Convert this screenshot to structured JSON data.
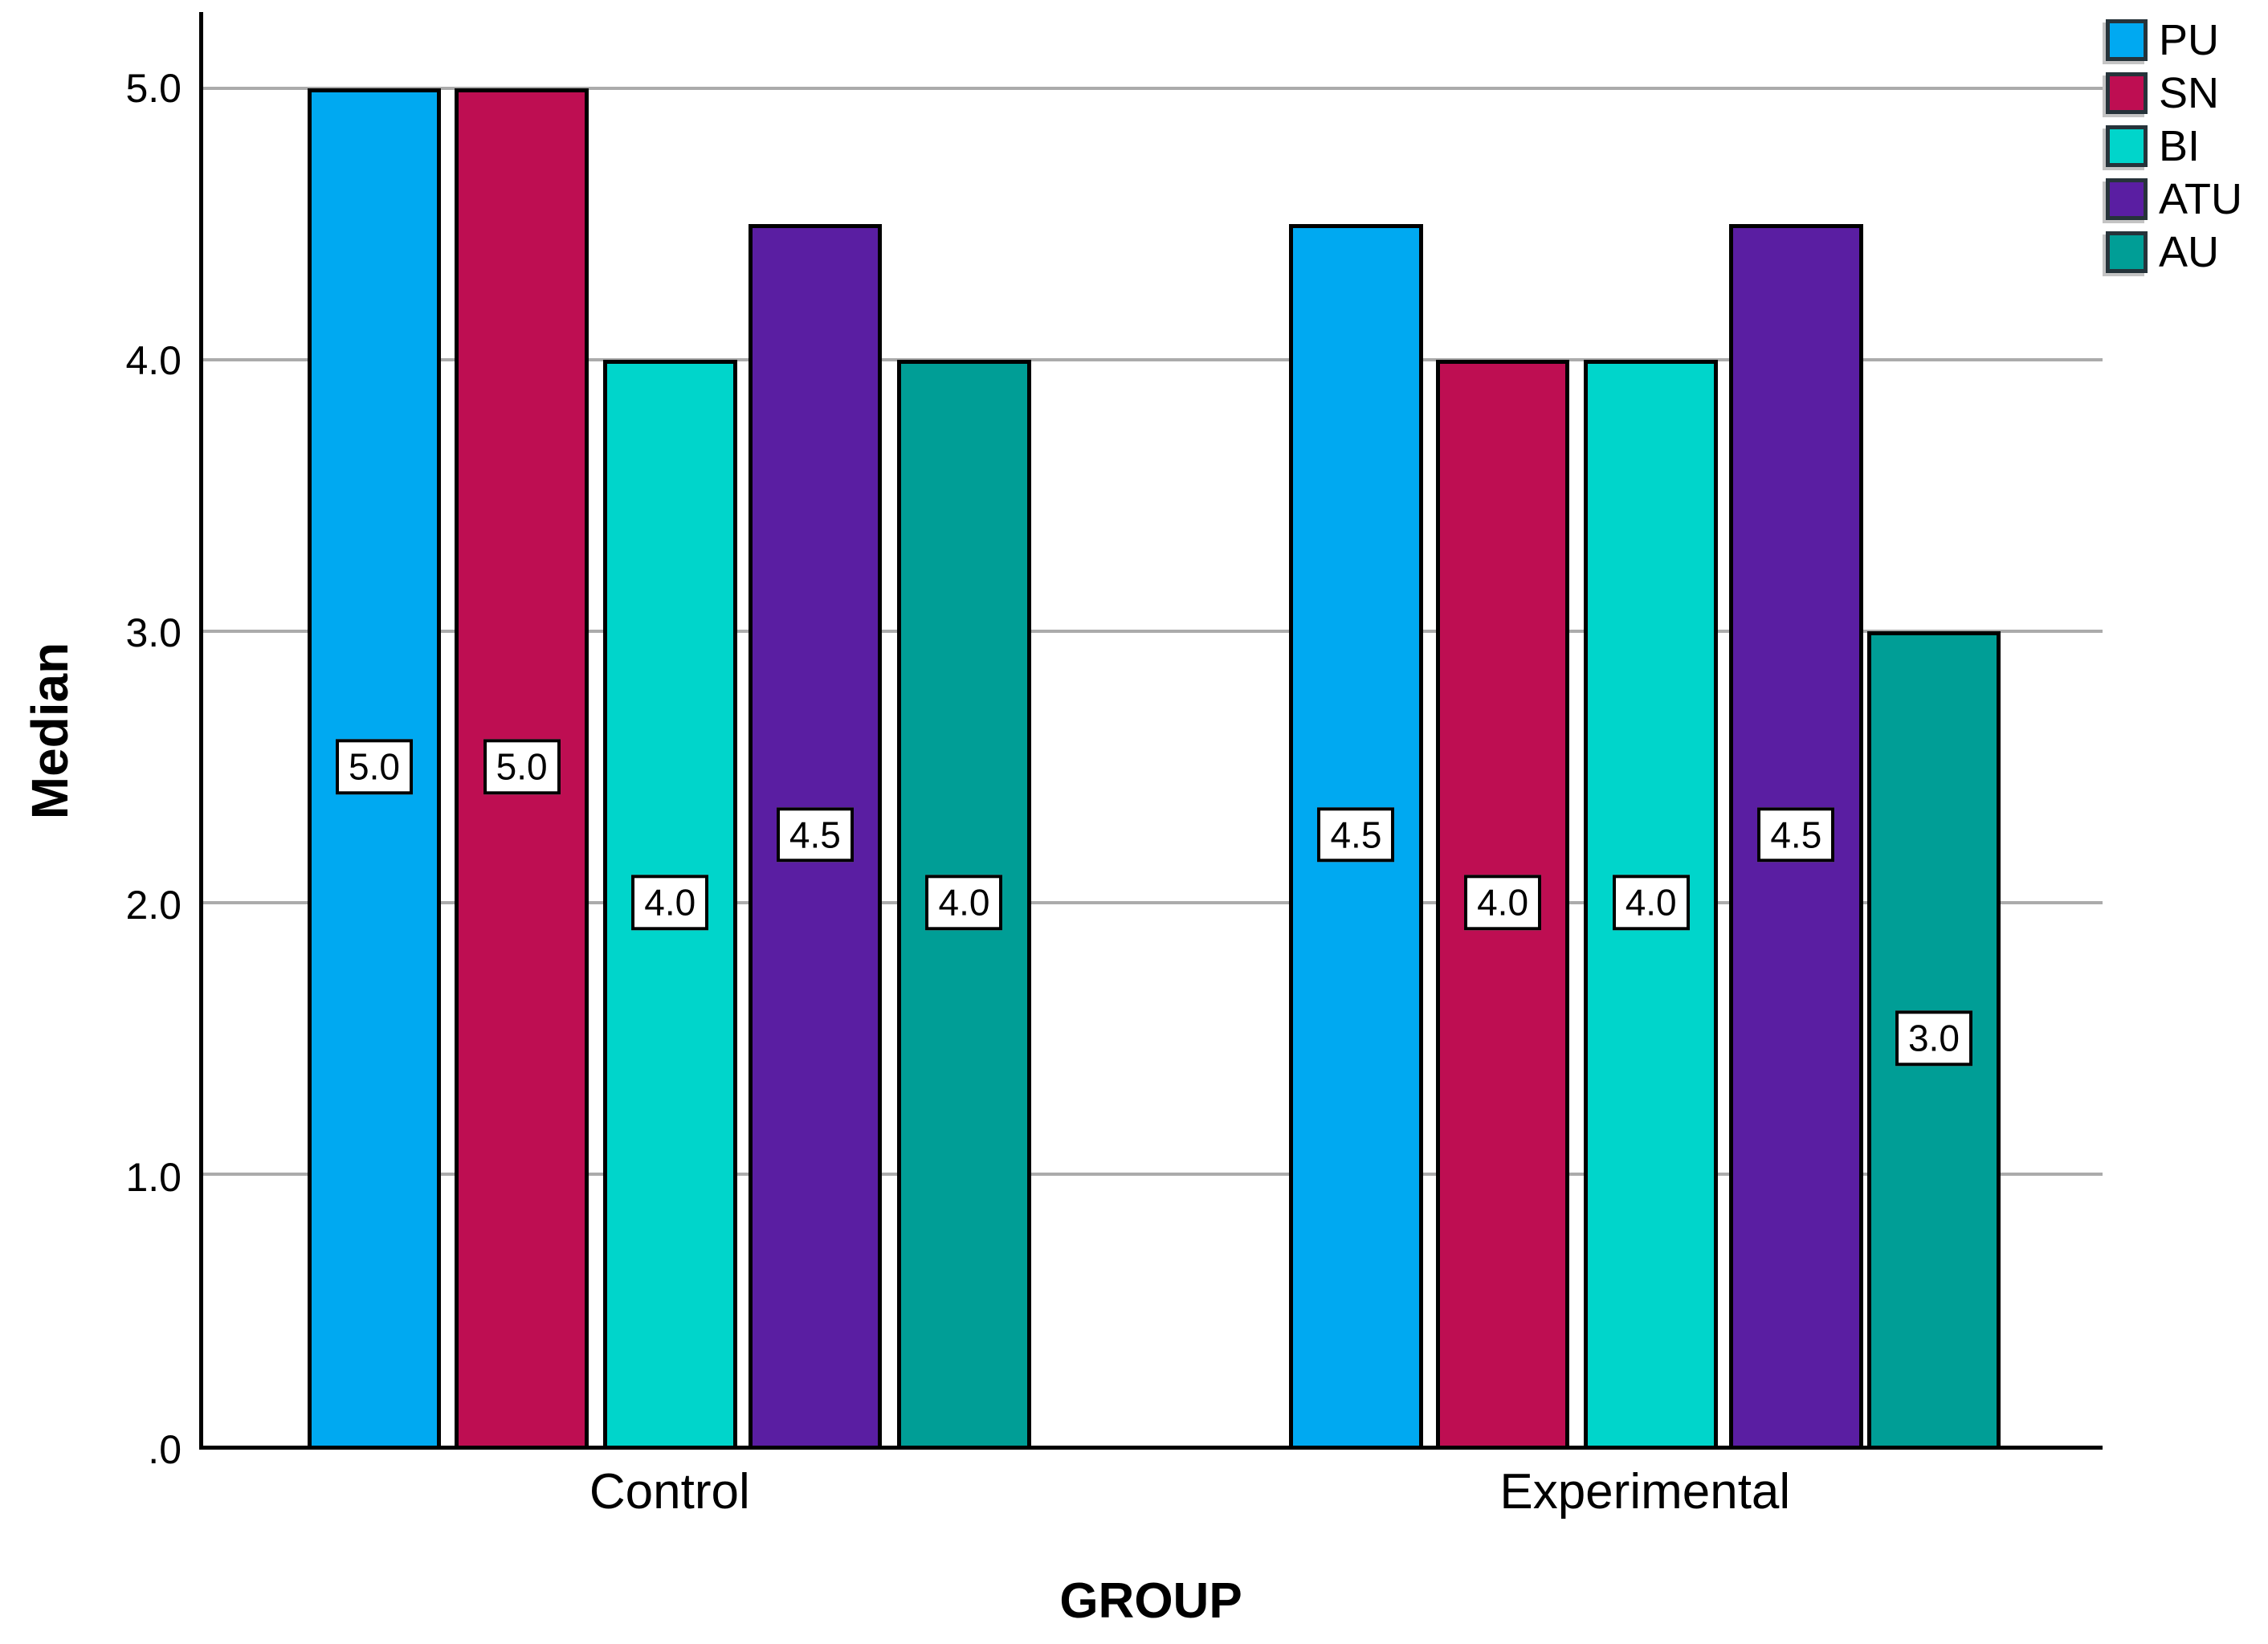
{
  "chart_data": {
    "type": "bar",
    "categories": [
      "Control",
      "Experimental"
    ],
    "series": [
      {
        "name": "PU",
        "color": "#00A9F1",
        "values": [
          5.0,
          4.5
        ],
        "value_labels": [
          "5.0",
          "4.5"
        ]
      },
      {
        "name": "SN",
        "color": "#BE0E52",
        "values": [
          5.0,
          4.0
        ],
        "value_labels": [
          "5.0",
          "4.0"
        ]
      },
      {
        "name": "BI",
        "color": "#00D5CB",
        "values": [
          4.0,
          4.0
        ],
        "value_labels": [
          "4.0",
          "4.0"
        ]
      },
      {
        "name": "ATU",
        "color": "#5A1EA2",
        "values": [
          4.5,
          4.5
        ],
        "value_labels": [
          "4.5",
          "4.5"
        ]
      },
      {
        "name": "AU",
        "color": "#009E96",
        "values": [
          4.0,
          3.0
        ],
        "value_labels": [
          "4.0",
          "3.0"
        ]
      }
    ],
    "xlabel": "GROUP",
    "ylabel": "Median",
    "ytick_labels": [
      ".0",
      "1.0",
      "2.0",
      "3.0",
      "4.0",
      "5.0"
    ],
    "ytick_values": [
      0,
      1,
      2,
      3,
      4,
      5
    ],
    "ylim": [
      0,
      5.28
    ],
    "grid": true,
    "legend_position": "top-right",
    "colors": {
      "grid": "#ABABAB",
      "axis": "#000000",
      "bar_border": "#000000",
      "label_box_bg": "#FFFFFF",
      "label_box_border": "#000000",
      "background": "#FFFFFF"
    }
  }
}
